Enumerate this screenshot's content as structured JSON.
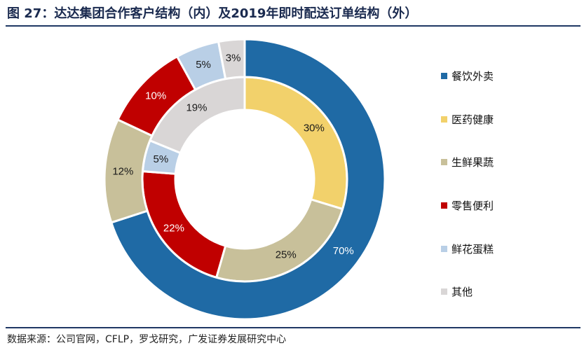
{
  "title": "图 27：达达集团合作客户结构（内）及2019年即时配送订单结构（外）",
  "source": "数据来源：公司官网，CFLP，罗戈研究，广发证券发展研究中心",
  "chart_data": {
    "type": "pie",
    "categories": [
      "餐饮外卖",
      "医药健康",
      "生鲜果蔬",
      "零售便利",
      "鲜花蛋糕",
      "其他"
    ],
    "colors": [
      "#1f6aa5",
      "#f2d16b",
      "#c8c09a",
      "#c00000",
      "#b9cfe6",
      "#d9d6d6"
    ],
    "series": [
      {
        "values": [
          0,
          30,
          25,
          22,
          5,
          19
        ],
        "labels": [
          "",
          "30%",
          "25%",
          "22%",
          "5%",
          "19%"
        ]
      },
      {
        "values": [
          70,
          0,
          12,
          10,
          5,
          3
        ],
        "labels": [
          "70%",
          "",
          "12%",
          "10%",
          "5%",
          "3%"
        ]
      }
    ],
    "legend_position": "right"
  }
}
